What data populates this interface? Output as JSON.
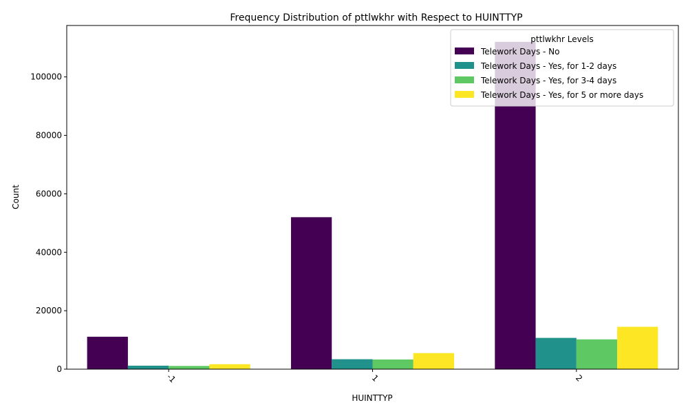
{
  "chart_data": {
    "type": "bar",
    "title": "Frequency Distribution of pttlwkhr with Respect to HUINTTYP",
    "xlabel": "HUINTTYP",
    "ylabel": "Count",
    "categories": [
      "-1",
      "1",
      "2"
    ],
    "ylim": [
      0,
      117600
    ],
    "yticks": [
      0,
      20000,
      40000,
      60000,
      80000,
      100000
    ],
    "grid": false,
    "legend": {
      "title": "pttlwkhr Levels",
      "position": "top-right"
    },
    "series": [
      {
        "name": "Telework Days - No",
        "color": "#440154",
        "values": [
          11100,
          52000,
          112000
        ]
      },
      {
        "name": "Telework Days - Yes, for 1-2 days",
        "color": "#21918c",
        "values": [
          1200,
          3400,
          10700
        ]
      },
      {
        "name": "Telework Days - Yes, for 3-4 days",
        "color": "#5ec962",
        "values": [
          1100,
          3300,
          10200
        ]
      },
      {
        "name": "Telework Days - Yes, for 5 or more days",
        "color": "#fde725",
        "values": [
          1700,
          5500,
          14500
        ]
      }
    ]
  }
}
